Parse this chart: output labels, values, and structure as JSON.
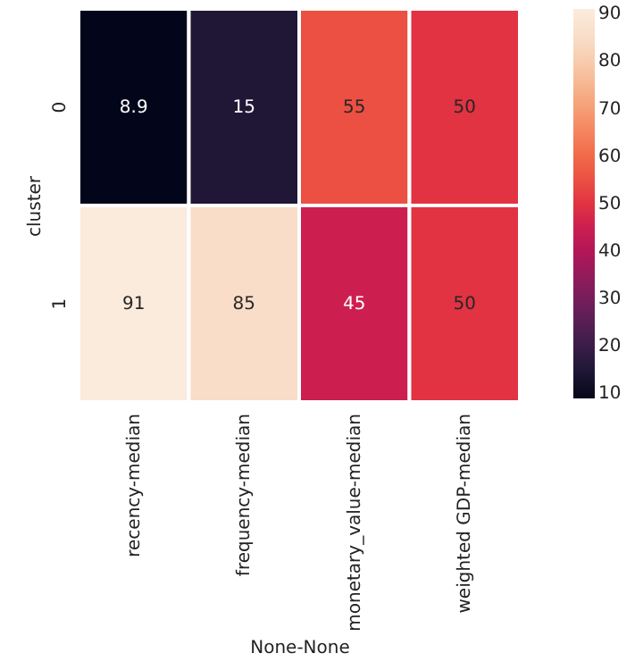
{
  "chart_data": {
    "type": "heatmap",
    "xlabel": "None-None",
    "ylabel": "cluster",
    "categories": [
      "recency-median",
      "frequency-median",
      "monetary_value-median",
      "weighted GDP-median"
    ],
    "y_categories": [
      "0",
      "1"
    ],
    "cells": [
      [
        8.9,
        15,
        55,
        50
      ],
      [
        91,
        85,
        45,
        50
      ]
    ],
    "data_labels": true,
    "clim": [
      8.9,
      91
    ],
    "cticks": [
      10,
      20,
      30,
      40,
      50,
      60,
      70,
      80,
      90
    ]
  }
}
